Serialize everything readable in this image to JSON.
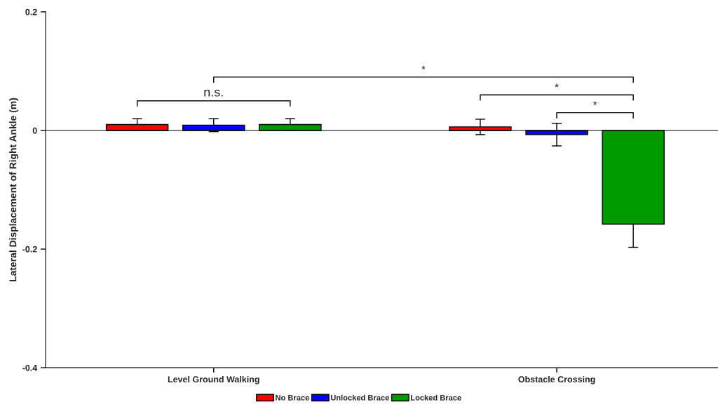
{
  "chart_data": {
    "type": "bar",
    "ylabel": "Lateral Displacement of Right Ankle (m)",
    "categories": [
      "Level Ground Walking",
      "Obstacle Crossing"
    ],
    "series": [
      {
        "name": "No Brace",
        "color": "#ff0000",
        "values": [
          0.01,
          0.006
        ],
        "errors": [
          0.01,
          0.013
        ]
      },
      {
        "name": "Unlocked Brace",
        "color": "#0000ff",
        "values": [
          0.009,
          -0.007
        ],
        "errors": [
          0.011,
          0.019
        ]
      },
      {
        "name": "Locked Brace",
        "color": "#009900",
        "values": [
          0.01,
          -0.158
        ],
        "errors": [
          0.01,
          0.039
        ]
      }
    ],
    "ylim": [
      -0.4,
      0.2
    ],
    "yticks": [
      0.2,
      0,
      -0.2,
      -0.4
    ],
    "ref_lines": [
      {
        "axis": "y",
        "value": 0,
        "color": "#000000"
      }
    ],
    "annotations": [
      "n.s.",
      "*",
      "*",
      "*"
    ],
    "legend": "bottom",
    "grid": false
  }
}
